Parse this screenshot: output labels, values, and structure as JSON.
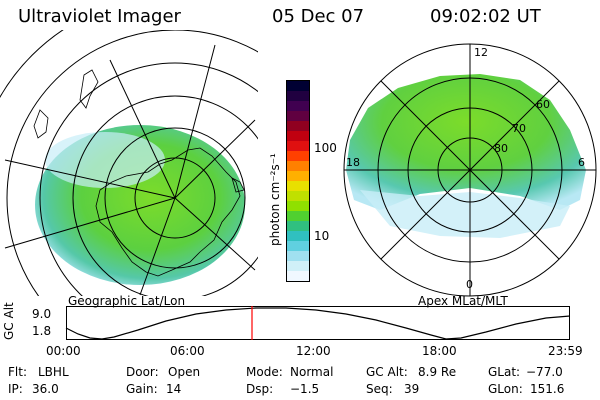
{
  "header": {
    "title": "Ultraviolet Imager",
    "date": "05 Dec 07",
    "time": "09:02:02 UT"
  },
  "left_map": {
    "caption": "Geographic Lat/Lon"
  },
  "right_map": {
    "caption": "Apex MLat/MLT",
    "mlt_labels": [
      "12",
      "18",
      "6",
      "0"
    ],
    "mlat_labels": [
      "60",
      "70",
      "80"
    ]
  },
  "colorbar": {
    "unit_label": "photon cm⁻²s⁻¹",
    "ticks": [
      "100",
      "10"
    ],
    "colors": [
      "#000033",
      "#200040",
      "#400050",
      "#600040",
      "#900020",
      "#c00010",
      "#e01010",
      "#ff4000",
      "#ff8000",
      "#ffb000",
      "#e8e000",
      "#c0e000",
      "#90e000",
      "#50d030",
      "#30c080",
      "#30c0c0",
      "#60d0e0",
      "#a0e0f0",
      "#d0f0f8",
      "#f0f8ff"
    ]
  },
  "altitude_plot": {
    "ylabel": "GC Alt",
    "yticks": [
      "9.0",
      "1.8"
    ],
    "xticks": [
      "00:00",
      "06:00",
      "12:00",
      "18:00",
      "23:59"
    ],
    "current_marker_color": "#ff0000"
  },
  "status": {
    "row1": [
      {
        "key": "Flt:",
        "value": "LBHL"
      },
      {
        "key": "Door:",
        "value": "Open"
      },
      {
        "key": "Mode:",
        "value": "Normal"
      },
      {
        "key": "GC Alt:",
        "value": "8.9 Re"
      },
      {
        "key": "GLat:",
        "value": "−77.0"
      }
    ],
    "row2": [
      {
        "key": "IP:",
        "value": "36.0"
      },
      {
        "key": "Gain:",
        "value": "14"
      },
      {
        "key": "Dsp:",
        "value": "−1.5"
      },
      {
        "key": "Seq:",
        "value": "39"
      },
      {
        "key": "GLon:",
        "value": "151.6"
      }
    ]
  }
}
